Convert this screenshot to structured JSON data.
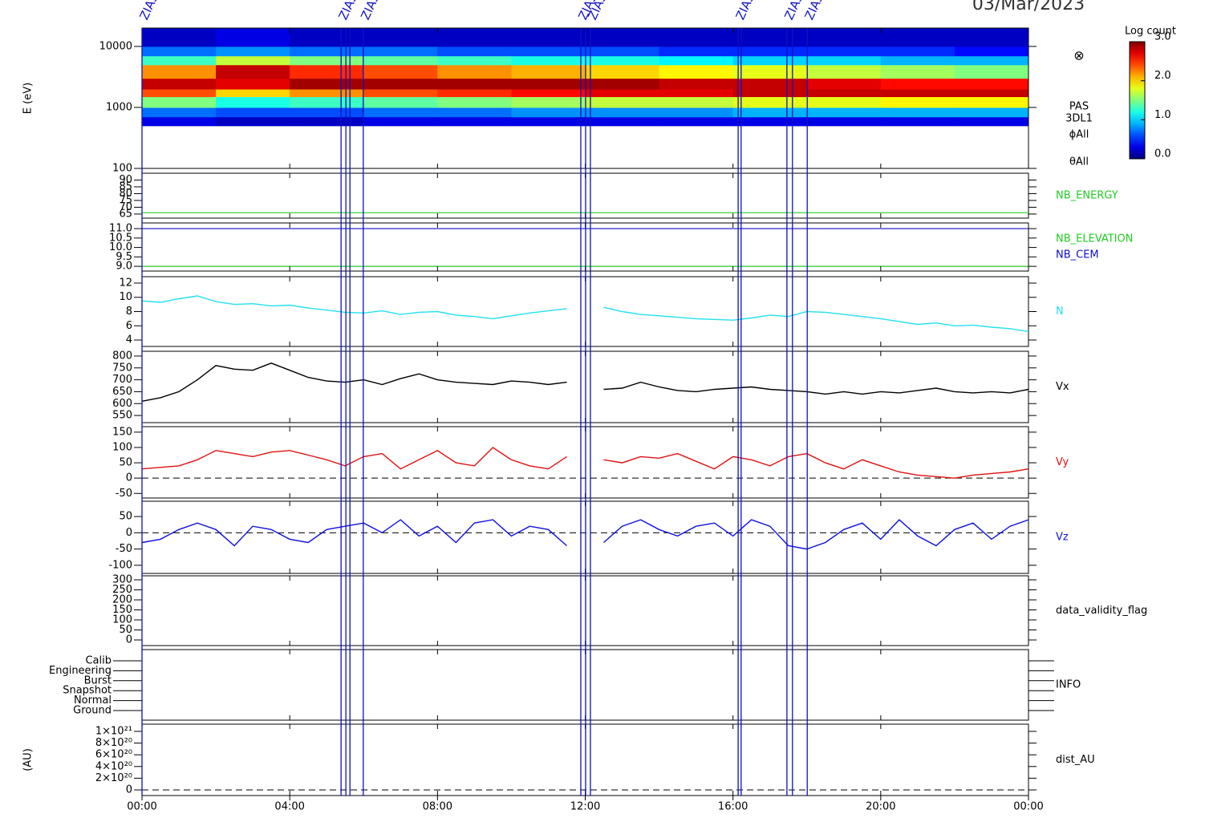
{
  "chart_data": {
    "type": "stacked-panels",
    "date": "03/Mar/2023",
    "xlim": [
      0,
      24
    ],
    "xticks": [
      {
        "value": 0,
        "label": "00:00"
      },
      {
        "value": 4,
        "label": "04:00"
      },
      {
        "value": 8,
        "label": "08:00"
      },
      {
        "value": 12,
        "label": "12:00"
      },
      {
        "value": 16,
        "label": "16:00"
      },
      {
        "value": 20,
        "label": "20:00"
      },
      {
        "value": 24,
        "label": "00:00"
      }
    ],
    "x": [
      0,
      0.5,
      1,
      1.5,
      2,
      2.5,
      3,
      3.5,
      4,
      4.5,
      5,
      5.5,
      6,
      6.5,
      7,
      7.5,
      8,
      8.5,
      9,
      9.5,
      10,
      10.5,
      11,
      11.5,
      12,
      12.5,
      13,
      13.5,
      14,
      14.5,
      15,
      15.5,
      16,
      16.5,
      17,
      17.5,
      18,
      18.5,
      19,
      19.5,
      20,
      20.5,
      21,
      21.5,
      22,
      22.5,
      23,
      23.5,
      24
    ],
    "markers": [
      {
        "x": 0.0,
        "label": "ZIAS"
      },
      {
        "x": 5.39,
        "label": "ZIAS"
      },
      {
        "x": 5.52
      },
      {
        "x": 5.63
      },
      {
        "x": 5.99,
        "label": "ZIAS"
      },
      {
        "x": 11.88,
        "label": "ZIAS"
      },
      {
        "x": 12.01
      },
      {
        "x": 12.14,
        "label": "ZIAS"
      },
      {
        "x": 16.14,
        "label": "ZIAS"
      },
      {
        "x": 16.22
      },
      {
        "x": 17.46,
        "label": "ZIAS"
      },
      {
        "x": 17.61
      },
      {
        "x": 18.01,
        "label": "ZIAS"
      }
    ],
    "marker_color": "#1010c0",
    "colorbar": {
      "label": "Log count",
      "colormap": "jet",
      "zlim": [
        0,
        3
      ],
      "ticks": [
        {
          "value": 0,
          "label": "0.0"
        },
        {
          "value": 1,
          "label": "1.0"
        },
        {
          "value": 2,
          "label": "2.0"
        },
        {
          "value": 3,
          "label": "3.0"
        }
      ]
    },
    "panels": [
      {
        "type": "spectrogram",
        "ylabel": "E (eV)",
        "ylog": true,
        "ylim": [
          100,
          20000
        ],
        "yticks": [
          100,
          1000,
          10000
        ],
        "symbol": "⊗",
        "right_labels": [
          "PAS",
          "3DL1",
          "ϕAll",
          "θAll"
        ],
        "time_bins": [
          0,
          2,
          4,
          6,
          8,
          10,
          12,
          14,
          16,
          18,
          20,
          22,
          24
        ],
        "energy_bins": [
          500,
          700,
          1000,
          1500,
          2000,
          3000,
          5000,
          7000,
          10000,
          20000
        ],
        "z": [
          [
            0.3,
            0.7,
            1.5,
            2.4,
            2.8,
            2.2,
            1.3,
            0.7,
            0.2
          ],
          [
            0.2,
            0.6,
            1.2,
            2.0,
            2.7,
            2.8,
            1.7,
            0.8,
            0.3
          ],
          [
            0.2,
            0.6,
            1.3,
            2.2,
            2.9,
            2.5,
            1.5,
            0.7,
            0.2
          ],
          [
            0.3,
            0.7,
            1.4,
            2.4,
            2.9,
            2.4,
            1.4,
            0.7,
            0.2
          ],
          [
            0.3,
            0.7,
            1.5,
            2.5,
            2.9,
            2.2,
            1.3,
            0.6,
            0.2
          ],
          [
            0.3,
            0.8,
            1.6,
            2.6,
            2.9,
            2.1,
            1.2,
            0.6,
            0.2
          ],
          [
            0.3,
            0.8,
            1.7,
            2.7,
            2.9,
            2.0,
            1.2,
            0.6,
            0.2
          ],
          [
            0.3,
            0.8,
            1.7,
            2.7,
            2.8,
            1.9,
            1.1,
            0.5,
            0.2
          ],
          [
            0.3,
            0.9,
            1.8,
            2.8,
            2.8,
            1.8,
            1.0,
            0.5,
            0.2
          ],
          [
            0.3,
            0.9,
            1.8,
            2.8,
            2.7,
            1.7,
            1.0,
            0.5,
            0.2
          ],
          [
            0.3,
            0.9,
            1.9,
            2.8,
            2.6,
            1.6,
            0.9,
            0.5,
            0.2
          ],
          [
            0.3,
            0.9,
            1.9,
            2.8,
            2.6,
            1.5,
            0.9,
            0.4,
            0.2
          ]
        ]
      },
      {
        "type": "hline",
        "ylim": [
          62,
          95
        ],
        "yticks": [
          65,
          70,
          75,
          80,
          85,
          90
        ],
        "series": [
          {
            "name": "NB_ENERGY",
            "color": "#22cc22",
            "level": 66
          }
        ]
      },
      {
        "type": "hline",
        "ylim": [
          8.75,
          11.3
        ],
        "yticks": [
          {
            "value": 9,
            "label": "9.0"
          },
          {
            "value": 9.5,
            "label": "9.5"
          },
          {
            "value": 10,
            "label": "10.0"
          },
          {
            "value": 10.5,
            "label": "10.5"
          },
          {
            "value": 11,
            "label": "11.0"
          }
        ],
        "series": [
          {
            "name": "NB_ELEVATION",
            "color": "#22cc22",
            "level": 9
          },
          {
            "name": "NB_CEM",
            "color": "#1010c0",
            "level": 11
          }
        ]
      },
      {
        "type": "line",
        "ylim": [
          3.1,
          12.9
        ],
        "yticks": [
          4,
          6,
          8,
          10,
          12
        ],
        "series": [
          {
            "name": "N",
            "color": "#22e0f0",
            "values": [
              9.5,
              9.3,
              9.8,
              10.2,
              9.4,
              9.0,
              9.1,
              8.8,
              8.9,
              8.5,
              8.2,
              7.9,
              7.8,
              8.1,
              7.6,
              7.9,
              8.0,
              7.5,
              7.3,
              7.0,
              7.4,
              7.8,
              8.1,
              8.4,
              null,
              8.6,
              8.0,
              7.6,
              7.4,
              7.2,
              7.0,
              6.9,
              6.8,
              7.1,
              7.5,
              7.3,
              8.0,
              7.9,
              7.6,
              7.3,
              7.0,
              6.6,
              6.2,
              6.4,
              6.0,
              6.1,
              5.8,
              5.6,
              5.2
            ]
          }
        ]
      },
      {
        "type": "line",
        "ylim": [
          520,
          820
        ],
        "yticks": [
          550,
          600,
          650,
          700,
          750,
          800
        ],
        "series": [
          {
            "name": "Vx",
            "color": "#000000",
            "values": [
              610,
              625,
              650,
              700,
              760,
              745,
              740,
              770,
              740,
              710,
              695,
              690,
              700,
              680,
              705,
              725,
              700,
              690,
              685,
              680,
              695,
              690,
              680,
              690,
              null,
              660,
              665,
              690,
              670,
              655,
              650,
              660,
              665,
              670,
              660,
              655,
              650,
              640,
              650,
              640,
              650,
              645,
              655,
              665,
              650,
              645,
              650,
              645,
              660
            ]
          }
        ]
      },
      {
        "type": "line",
        "ylim": [
          -65,
          168
        ],
        "yticks": [
          -50,
          0,
          50,
          100,
          150
        ],
        "zero_line": true,
        "series": [
          {
            "name": "Vy",
            "color": "#e01010",
            "values": [
              30,
              35,
              40,
              60,
              90,
              80,
              70,
              85,
              90,
              75,
              60,
              40,
              70,
              80,
              30,
              60,
              90,
              50,
              40,
              100,
              60,
              40,
              30,
              70,
              null,
              60,
              50,
              70,
              65,
              80,
              55,
              30,
              70,
              60,
              40,
              70,
              80,
              50,
              30,
              60,
              40,
              20,
              10,
              5,
              0,
              10,
              15,
              20,
              30
            ]
          }
        ]
      },
      {
        "type": "line",
        "ylim": [
          -125,
          97
        ],
        "yticks": [
          -100,
          -50,
          0,
          50
        ],
        "zero_line": true,
        "series": [
          {
            "name": "Vz",
            "color": "#1010e0",
            "values": [
              -30,
              -20,
              10,
              30,
              10,
              -40,
              20,
              10,
              -20,
              -30,
              10,
              20,
              30,
              0,
              40,
              -10,
              20,
              -30,
              30,
              40,
              -10,
              20,
              10,
              -40,
              null,
              -30,
              20,
              40,
              10,
              -10,
              20,
              30,
              -10,
              40,
              20,
              -40,
              -50,
              -30,
              10,
              30,
              -20,
              40,
              -10,
              -40,
              10,
              30,
              -20,
              20,
              40
            ]
          }
        ]
      },
      {
        "type": "empty",
        "ylim": [
          -28,
          320
        ],
        "yticks": [
          0,
          50,
          100,
          150,
          200,
          250,
          300
        ],
        "label": "data_validity_flag"
      },
      {
        "type": "categorical",
        "categories": [
          "Calib",
          "Engineering",
          "Burst",
          "Snapshot",
          "Normal",
          "Ground"
        ],
        "label": "INFO"
      },
      {
        "type": "empty",
        "ylabel": "(AU)",
        "ylim": [
          -9.6e+19,
          1.123e+21
        ],
        "zero_line": true,
        "label": "dist_AU",
        "yticks": [
          0,
          {
            "value": 2e+20,
            "label": "2×10²⁰"
          },
          {
            "value": 4e+20,
            "label": "4×10²⁰"
          },
          {
            "value": 6e+20,
            "label": "6×10²⁰"
          },
          {
            "value": 8e+20,
            "label": "8×10²⁰"
          },
          {
            "value": 1e+21,
            "label": "1×10²¹"
          }
        ]
      }
    ]
  }
}
